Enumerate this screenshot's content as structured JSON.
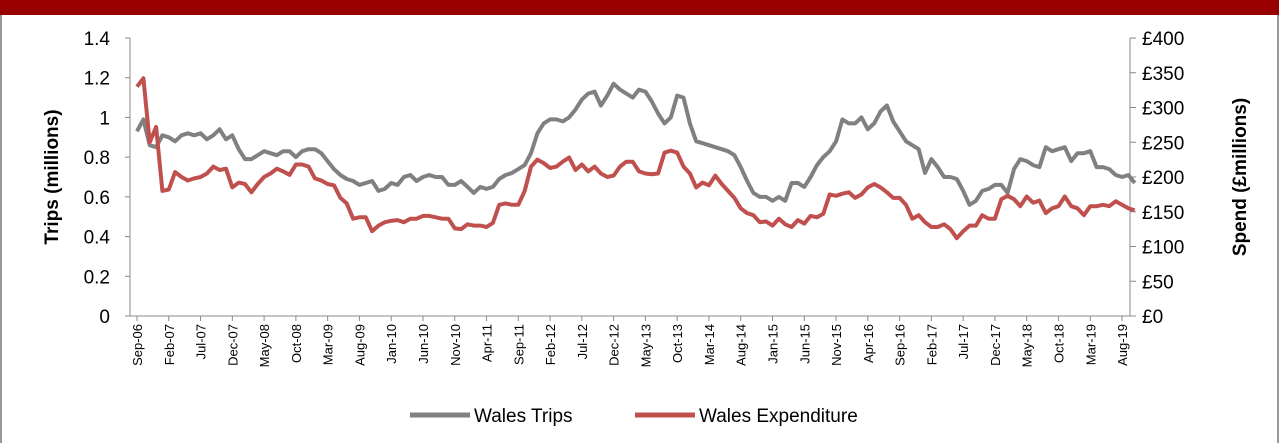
{
  "chart_data": {
    "type": "line",
    "categories": [
      "Sep-06",
      null,
      null,
      null,
      null,
      "Feb-07",
      null,
      null,
      null,
      null,
      "Jul-07",
      null,
      null,
      null,
      null,
      "Dec-07",
      null,
      null,
      null,
      null,
      "May-08",
      null,
      null,
      null,
      null,
      "Oct-08",
      null,
      null,
      null,
      null,
      "Mar-09",
      null,
      null,
      null,
      null,
      "Aug-09",
      null,
      null,
      null,
      null,
      "Jan-10",
      null,
      null,
      null,
      null,
      "Jun-10",
      null,
      null,
      null,
      null,
      "Nov-10",
      null,
      null,
      null,
      null,
      "Apr-11",
      null,
      null,
      null,
      null,
      "Sep-11",
      null,
      null,
      null,
      null,
      "Feb-12",
      null,
      null,
      null,
      null,
      "Jul-12",
      null,
      null,
      null,
      null,
      "Dec-12",
      null,
      null,
      null,
      null,
      "May-13",
      null,
      null,
      null,
      null,
      "Oct-13",
      null,
      null,
      null,
      null,
      "Mar-14",
      null,
      null,
      null,
      null,
      "Aug-14",
      null,
      null,
      null,
      null,
      "Jan-15",
      null,
      null,
      null,
      null,
      "Jun-15",
      null,
      null,
      null,
      null,
      "Nov-15",
      null,
      null,
      null,
      null,
      "Apr-16",
      null,
      null,
      null,
      null,
      "Sep-16",
      null,
      null,
      null,
      null,
      "Feb-17",
      null,
      null,
      null,
      null,
      "Jul-17",
      null,
      null,
      null,
      null,
      "Dec-17",
      null,
      null,
      null,
      null,
      "May-18",
      null,
      null,
      null,
      null,
      "Oct-18",
      null,
      null,
      null,
      null,
      "Mar-19",
      null,
      null,
      null,
      null,
      "Aug-19",
      null,
      null
    ],
    "series": [
      {
        "name": "Wales Trips",
        "color": "#808080",
        "values": [
          0.93,
          0.99,
          0.86,
          0.85,
          0.91,
          0.9,
          0.88,
          0.91,
          0.92,
          0.91,
          0.92,
          0.89,
          0.91,
          0.94,
          0.89,
          0.91,
          0.84,
          0.79,
          0.79,
          0.81,
          0.83,
          0.82,
          0.81,
          0.83,
          0.83,
          0.8,
          0.83,
          0.84,
          0.84,
          0.82,
          0.78,
          0.74,
          0.71,
          0.69,
          0.68,
          0.66,
          0.67,
          0.68,
          0.63,
          0.64,
          0.67,
          0.66,
          0.7,
          0.71,
          0.68,
          0.7,
          0.71,
          0.7,
          0.7,
          0.66,
          0.66,
          0.68,
          0.65,
          0.62,
          0.65,
          0.64,
          0.65,
          0.69,
          0.71,
          0.72,
          0.74,
          0.76,
          0.82,
          0.92,
          0.97,
          0.99,
          0.99,
          0.98,
          1.0,
          1.04,
          1.09,
          1.12,
          1.13,
          1.06,
          1.11,
          1.17,
          1.14,
          1.12,
          1.1,
          1.14,
          1.13,
          1.08,
          1.02,
          0.97,
          1.0,
          1.11,
          1.1,
          0.97,
          0.88,
          0.87,
          0.86,
          0.85,
          0.84,
          0.83,
          0.81,
          0.75,
          0.68,
          0.62,
          0.6,
          0.6,
          0.58,
          0.6,
          0.58,
          0.67,
          0.67,
          0.65,
          0.7,
          0.76,
          0.8,
          0.83,
          0.88,
          0.99,
          0.97,
          0.97,
          1.0,
          0.94,
          0.97,
          1.03,
          1.06,
          0.98,
          0.93,
          0.88,
          0.86,
          0.84,
          0.72,
          0.79,
          0.75,
          0.7,
          0.7,
          0.69,
          0.63,
          0.56,
          0.58,
          0.63,
          0.64,
          0.66,
          0.66,
          0.62,
          0.74,
          0.79,
          0.78,
          0.76,
          0.75,
          0.85,
          0.83,
          0.84,
          0.85,
          0.78,
          0.82,
          0.82,
          0.83,
          0.75,
          0.75,
          0.74,
          0.71,
          0.7,
          0.71,
          0.67
        ]
      },
      {
        "name": "Wales Expenditure",
        "color": "#c0504d",
        "axis": "y2",
        "values": [
          330,
          342,
          250,
          272,
          180,
          182,
          207,
          200,
          195,
          198,
          200,
          205,
          215,
          210,
          212,
          185,
          192,
          190,
          178,
          190,
          200,
          205,
          212,
          208,
          203,
          218,
          218,
          215,
          198,
          195,
          190,
          188,
          170,
          162,
          140,
          142,
          142,
          122,
          130,
          135,
          137,
          138,
          135,
          140,
          140,
          144,
          144,
          142,
          140,
          140,
          126,
          125,
          132,
          130,
          130,
          128,
          134,
          160,
          162,
          160,
          160,
          180,
          215,
          225,
          220,
          213,
          215,
          222,
          228,
          210,
          218,
          208,
          215,
          205,
          200,
          202,
          215,
          222,
          222,
          208,
          205,
          204,
          205,
          235,
          238,
          235,
          215,
          205,
          185,
          192,
          188,
          202,
          190,
          180,
          170,
          155,
          148,
          145,
          135,
          136,
          130,
          140,
          132,
          128,
          138,
          133,
          144,
          142,
          147,
          175,
          173,
          176,
          178,
          170,
          175,
          185,
          190,
          185,
          178,
          170,
          170,
          160,
          140,
          145,
          135,
          128,
          128,
          132,
          125,
          112,
          122,
          130,
          130,
          145,
          140,
          140,
          168,
          173,
          168,
          158,
          172,
          163,
          166,
          148,
          155,
          158,
          172,
          158,
          155,
          145,
          158,
          158,
          160,
          158,
          165,
          160,
          155,
          152
        ]
      }
    ],
    "y_label": "Trips (millions)",
    "y2_label": "Spend (£millions)",
    "ylim": [
      0,
      1.4
    ],
    "yticks": [
      0,
      0.2,
      0.4,
      0.6,
      0.8,
      1,
      1.2,
      1.4
    ],
    "y2lim": [
      0,
      400
    ],
    "y2ticks": [
      {
        "value": 0,
        "label": "£0"
      },
      {
        "value": 50,
        "label": "£50"
      },
      {
        "value": 100,
        "label": "£100"
      },
      {
        "value": 150,
        "label": "£150"
      },
      {
        "value": 200,
        "label": "£200"
      },
      {
        "value": 250,
        "label": "£250"
      },
      {
        "value": 300,
        "label": "£300"
      },
      {
        "value": 350,
        "label": "£350"
      },
      {
        "value": 400,
        "label": "£400"
      }
    ],
    "legend": "bottom"
  }
}
